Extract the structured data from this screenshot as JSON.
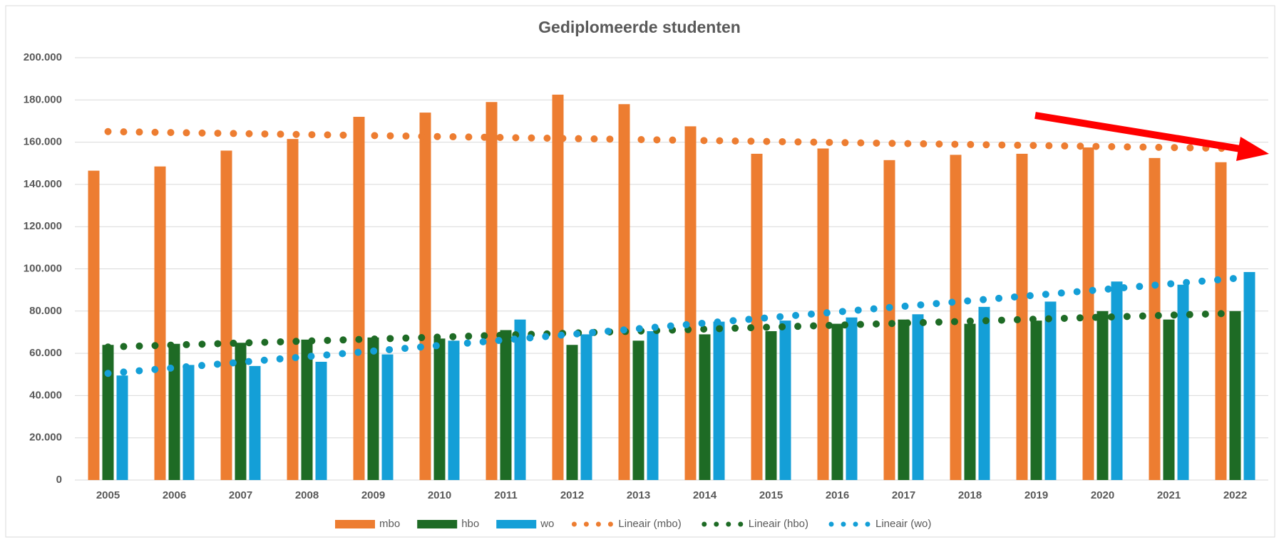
{
  "chart_data": {
    "type": "bar",
    "title": "Gediplomeerde studenten",
    "categories": [
      "2005",
      "2006",
      "2007",
      "2008",
      "2009",
      "2010",
      "2011",
      "2012",
      "2013",
      "2014",
      "2015",
      "2016",
      "2017",
      "2018",
      "2019",
      "2020",
      "2021",
      "2022"
    ],
    "series": [
      {
        "name": "mbo",
        "color": "#ed7d31",
        "values": [
          146500,
          148500,
          156000,
          161500,
          172000,
          174000,
          179000,
          182500,
          178000,
          167500,
          154500,
          157000,
          151500,
          154000,
          154500,
          157500,
          152500,
          150500
        ]
      },
      {
        "name": "hbo",
        "color": "#1e6b25",
        "values": [
          64000,
          64500,
          65000,
          66500,
          67500,
          67000,
          71000,
          64000,
          66000,
          69000,
          70500,
          74000,
          76000,
          74000,
          75500,
          80000,
          76000,
          80000
        ]
      },
      {
        "name": "wo",
        "color": "#149fd7",
        "values": [
          49500,
          54500,
          54000,
          56000,
          59500,
          66000,
          76000,
          69000,
          70500,
          75000,
          75500,
          77000,
          78500,
          82000,
          84500,
          94000,
          92500,
          98500
        ]
      }
    ],
    "trendlines": [
      {
        "name": "Lineair (mbo)",
        "color": "#ed7d31",
        "values": [
          165000,
          157000
        ]
      },
      {
        "name": "Lineair (hbo)",
        "color": "#1e6b25",
        "values": [
          63000,
          79000
        ]
      },
      {
        "name": "Lineair (wo)",
        "color": "#149fd7",
        "values": [
          50500,
          95500
        ]
      }
    ],
    "ylim": [
      0,
      200000
    ],
    "yticks": [
      0,
      {
        "value": 20000,
        "label": "20.000"
      },
      {
        "value": 40000,
        "label": "40.000"
      },
      {
        "value": 60000,
        "label": "60.000"
      },
      {
        "value": 80000,
        "label": "80.000"
      },
      {
        "value": 100000,
        "label": "100.000"
      },
      {
        "value": 120000,
        "label": "120.000"
      },
      {
        "value": 140000,
        "label": "140.000"
      },
      {
        "value": 160000,
        "label": "160.000"
      },
      {
        "value": 180000,
        "label": "180.000"
      },
      {
        "value": 200000,
        "label": "200.000"
      }
    ],
    "grid": true,
    "legend": "bottom"
  }
}
